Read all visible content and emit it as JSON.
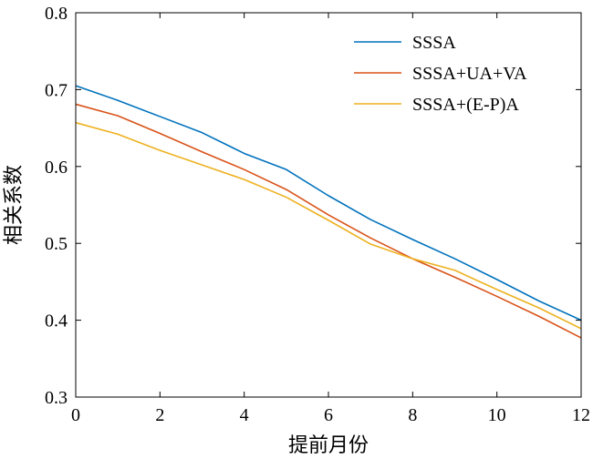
{
  "chart_data": {
    "type": "line",
    "title": "",
    "xlabel": "提前月份",
    "ylabel": "相关系数",
    "xlim": [
      0,
      12
    ],
    "ylim": [
      0.3,
      0.8
    ],
    "xticks": [
      0,
      2,
      4,
      6,
      8,
      10,
      12
    ],
    "yticks": [
      0.3,
      0.4,
      0.5,
      0.6,
      0.7,
      0.8
    ],
    "x_tick_labels": [
      "0",
      "2",
      "4",
      "6",
      "8",
      "10",
      "12"
    ],
    "y_tick_labels": [
      "0.3",
      "0.4",
      "0.5",
      "0.6",
      "0.7",
      "0.8"
    ],
    "grid": false,
    "legend_position": "top-right",
    "x": [
      0,
      1,
      2,
      3,
      4,
      5,
      6,
      7,
      8,
      9,
      10,
      11,
      12
    ],
    "series": [
      {
        "name": "SSSA",
        "color": "#0072BD",
        "values": [
          0.705,
          0.686,
          0.665,
          0.644,
          0.617,
          0.596,
          0.562,
          0.531,
          0.505,
          0.48,
          0.453,
          0.425,
          0.4
        ]
      },
      {
        "name": "SSSA+UA+VA",
        "color": "#D95319",
        "values": [
          0.681,
          0.666,
          0.643,
          0.619,
          0.596,
          0.57,
          0.537,
          0.507,
          0.48,
          0.456,
          0.431,
          0.405,
          0.377
        ]
      },
      {
        "name": "SSSA+(E-P)A",
        "color": "#EDB120",
        "values": [
          0.657,
          0.642,
          0.621,
          0.602,
          0.583,
          0.56,
          0.53,
          0.499,
          0.48,
          0.465,
          0.44,
          0.416,
          0.389
        ]
      }
    ]
  }
}
